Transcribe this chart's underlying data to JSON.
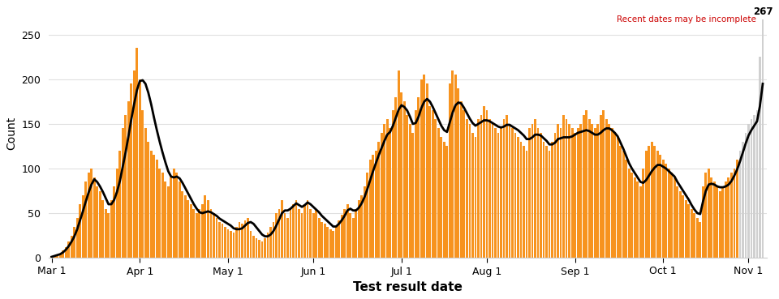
{
  "xlabel": "Test result date",
  "ylabel": "Count",
  "ylim": [
    0,
    280
  ],
  "background_color": "#ffffff",
  "bar_color": "#f7931e",
  "line_color": "#000000",
  "incomplete_color": "#d0d0d0",
  "annotation_text": "267",
  "annotation_color": "#000000",
  "incomplete_label": "Recent dates may be incomplete",
  "incomplete_label_color": "#cc0000",
  "incomplete_start_day": 242,
  "x_ticks_days": [
    0,
    31,
    62,
    92,
    123,
    153,
    184,
    215,
    245
  ],
  "x_tick_labels": [
    "Mar 1",
    "Apr 1",
    "May 1",
    "Jun 1",
    "Jul 1",
    "Aug 1",
    "Sep 1",
    "Oct 1",
    "Nov 1"
  ],
  "y_ticks": [
    0,
    50,
    100,
    150,
    200,
    250
  ],
  "grid_color": "#e0e0e0",
  "bar_values": [
    1,
    2,
    3,
    5,
    8,
    12,
    18,
    25,
    35,
    45,
    60,
    70,
    85,
    95,
    100,
    90,
    80,
    75,
    65,
    55,
    50,
    65,
    80,
    100,
    120,
    145,
    160,
    175,
    195,
    210,
    235,
    200,
    165,
    145,
    130,
    120,
    115,
    110,
    100,
    95,
    85,
    80,
    90,
    100,
    95,
    85,
    75,
    70,
    65,
    60,
    55,
    50,
    55,
    60,
    70,
    65,
    55,
    50,
    45,
    40,
    38,
    35,
    32,
    30,
    28,
    35,
    40,
    38,
    42,
    45,
    30,
    25,
    22,
    20,
    18,
    22,
    28,
    35,
    40,
    50,
    55,
    65,
    50,
    45,
    55,
    60,
    65,
    55,
    50,
    60,
    65,
    55,
    50,
    55,
    45,
    40,
    38,
    35,
    32,
    30,
    35,
    42,
    48,
    55,
    60,
    50,
    45,
    55,
    65,
    70,
    80,
    95,
    110,
    115,
    120,
    130,
    140,
    150,
    155,
    145,
    165,
    180,
    210,
    185,
    175,
    160,
    150,
    140,
    165,
    180,
    200,
    205,
    195,
    170,
    165,
    155,
    145,
    135,
    130,
    125,
    195,
    210,
    205,
    190,
    175,
    165,
    155,
    150,
    140,
    135,
    155,
    160,
    170,
    165,
    155,
    150,
    145,
    140,
    145,
    155,
    160,
    150,
    145,
    140,
    135,
    130,
    125,
    120,
    145,
    150,
    155,
    145,
    140,
    130,
    125,
    120,
    130,
    140,
    150,
    145,
    160,
    155,
    150,
    145,
    140,
    145,
    150,
    160,
    165,
    155,
    150,
    145,
    150,
    160,
    165,
    155,
    150,
    145,
    140,
    135,
    125,
    120,
    110,
    100,
    95,
    90,
    85,
    80,
    100,
    120,
    125,
    130,
    125,
    120,
    115,
    110,
    105,
    100,
    95,
    90,
    80,
    75,
    70,
    65,
    60,
    55,
    50,
    45,
    40,
    80,
    95,
    100,
    90,
    85,
    80,
    75,
    80,
    85,
    90,
    95,
    100,
    110,
    120,
    130,
    140,
    150,
    155,
    160,
    165,
    225,
    267
  ],
  "ma_values": [
    1,
    2,
    3,
    4,
    6,
    9,
    13,
    18,
    24,
    32,
    42,
    52,
    63,
    73,
    82,
    88,
    85,
    80,
    74,
    67,
    60,
    60,
    65,
    74,
    86,
    102,
    118,
    136,
    155,
    172,
    188,
    198,
    199,
    195,
    185,
    172,
    157,
    143,
    130,
    118,
    107,
    97,
    91,
    90,
    91,
    89,
    84,
    78,
    72,
    66,
    60,
    55,
    51,
    50,
    51,
    52,
    51,
    49,
    47,
    44,
    42,
    40,
    38,
    36,
    33,
    32,
    32,
    33,
    36,
    39,
    40,
    38,
    34,
    30,
    26,
    24,
    24,
    26,
    30,
    36,
    43,
    50,
    53,
    53,
    55,
    58,
    61,
    59,
    57,
    59,
    62,
    60,
    57,
    54,
    51,
    47,
    44,
    41,
    38,
    35,
    35,
    38,
    42,
    47,
    53,
    55,
    53,
    53,
    56,
    61,
    68,
    77,
    87,
    97,
    106,
    115,
    123,
    131,
    138,
    141,
    148,
    157,
    166,
    171,
    169,
    165,
    158,
    150,
    151,
    158,
    168,
    175,
    178,
    175,
    169,
    162,
    155,
    148,
    143,
    141,
    152,
    163,
    171,
    174,
    173,
    168,
    162,
    156,
    151,
    148,
    150,
    152,
    154,
    154,
    153,
    151,
    149,
    147,
    146,
    147,
    149,
    149,
    147,
    145,
    143,
    140,
    137,
    133,
    133,
    135,
    138,
    138,
    137,
    134,
    131,
    127,
    127,
    129,
    133,
    134,
    135,
    135,
    135,
    136,
    138,
    140,
    141,
    142,
    143,
    142,
    140,
    138,
    138,
    140,
    143,
    145,
    145,
    143,
    140,
    136,
    129,
    122,
    114,
    106,
    100,
    95,
    90,
    85,
    84,
    87,
    92,
    97,
    101,
    104,
    104,
    102,
    100,
    97,
    94,
    91,
    85,
    80,
    75,
    70,
    65,
    59,
    54,
    50,
    49,
    63,
    75,
    82,
    83,
    82,
    80,
    79,
    79,
    80,
    82,
    86,
    92,
    99,
    108,
    118,
    128,
    137,
    143,
    148,
    153,
    170,
    195
  ]
}
